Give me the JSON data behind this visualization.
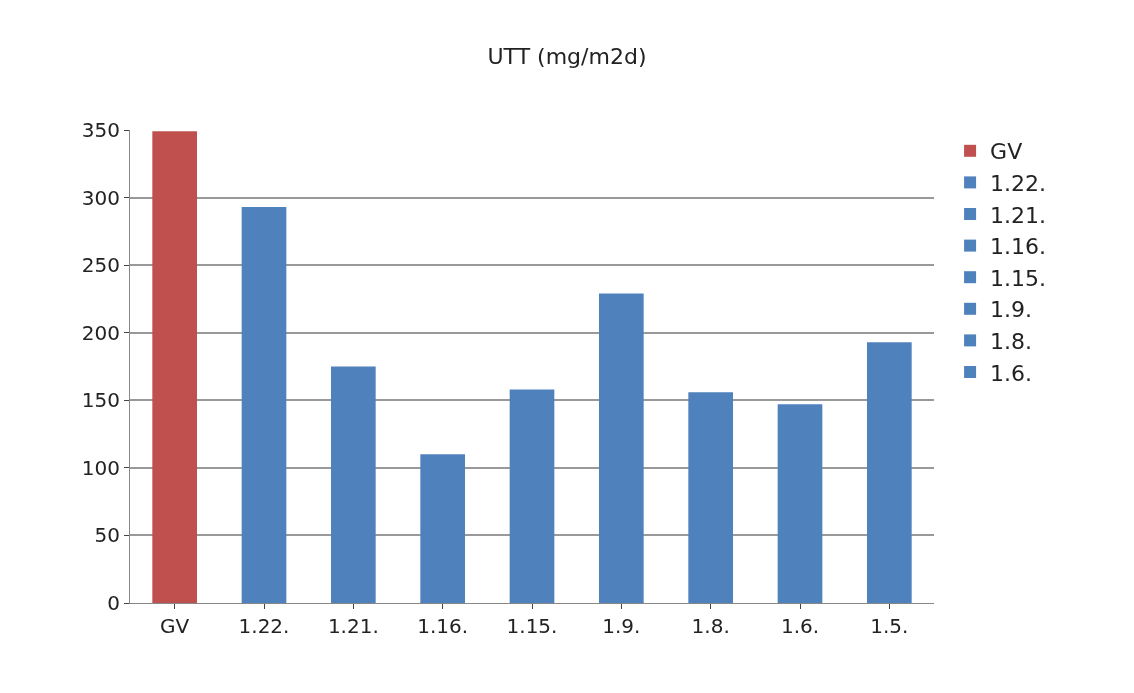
{
  "chart_data": {
    "type": "bar",
    "title": "UTT (mg/m2d)",
    "categories": [
      "GV",
      "1.22.",
      "1.21.",
      "1.16.",
      "1.15.",
      "1.9.",
      "1.8.",
      "1.6.",
      "1.5."
    ],
    "series": [
      {
        "name": "GV",
        "color": "#c0504d",
        "values": [
          349,
          null,
          null,
          null,
          null,
          null,
          null,
          null,
          null
        ]
      },
      {
        "name": "1.22.",
        "color": "#4f81bd",
        "values": [
          null,
          293,
          null,
          null,
          null,
          null,
          null,
          null,
          null
        ]
      },
      {
        "name": "1.21.",
        "color": "#4f81bd",
        "values": [
          null,
          null,
          175,
          null,
          null,
          null,
          null,
          null,
          null
        ]
      },
      {
        "name": "1.16.",
        "color": "#4f81bd",
        "values": [
          null,
          null,
          null,
          110,
          null,
          null,
          null,
          null,
          null
        ]
      },
      {
        "name": "1.15.",
        "color": "#4f81bd",
        "values": [
          null,
          null,
          null,
          null,
          158,
          null,
          null,
          null,
          null
        ]
      },
      {
        "name": "1.9.",
        "color": "#4f81bd",
        "values": [
          null,
          null,
          null,
          null,
          null,
          229,
          null,
          null,
          null
        ]
      },
      {
        "name": "1.8.",
        "color": "#4f81bd",
        "values": [
          null,
          null,
          null,
          null,
          null,
          null,
          156,
          null,
          null
        ]
      },
      {
        "name": "1.6.",
        "color": "#4f81bd",
        "values": [
          null,
          null,
          null,
          null,
          null,
          null,
          null,
          147,
          null
        ]
      },
      {
        "color": "#4f81bd",
        "values": [
          null,
          null,
          null,
          null,
          null,
          null,
          null,
          null,
          193
        ]
      }
    ],
    "ylim": [
      0,
      350
    ],
    "yticks": [
      0,
      50,
      100,
      150,
      200,
      250,
      300,
      350
    ],
    "grid": "y",
    "legend": "right"
  }
}
